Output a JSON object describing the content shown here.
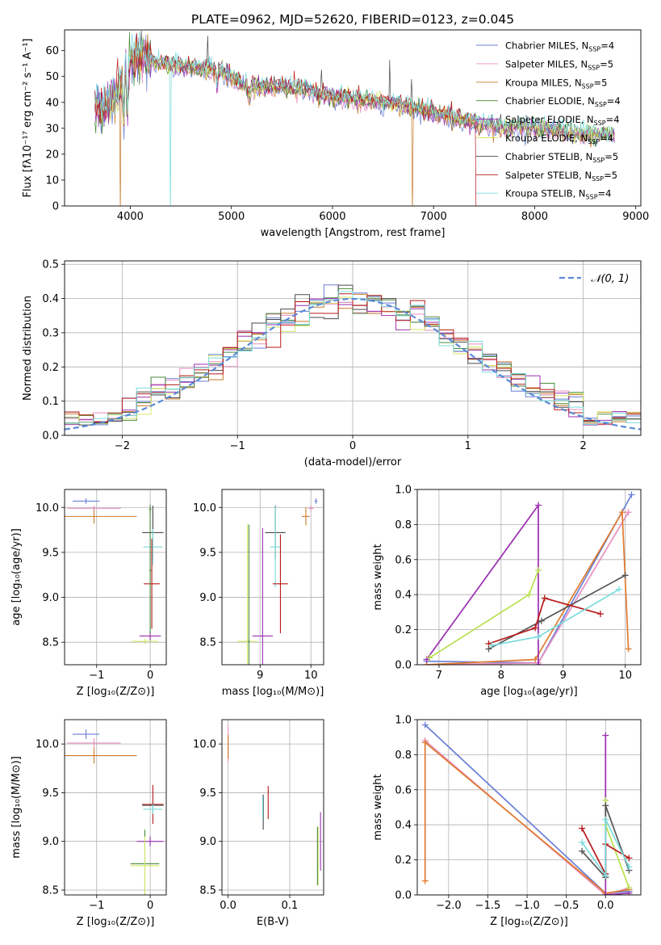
{
  "figure_title": "PLATE=0962, MJD=52620, FIBERID=0123, z=0.045",
  "colors": [
    "#6a7fd6",
    "#e88fc0",
    "#c87a2c",
    "#4a8a3a",
    "#9b30b0",
    "#d4e86a",
    "#4a4a4a",
    "#b81a1a",
    "#7adcdc"
  ],
  "chart_data": [
    {
      "id": "spectrum",
      "type": "line",
      "xlabel": "wavelength [Angstrom, rest frame]",
      "ylabel": "Flux [fλ10⁻¹⁷ erg cm⁻² s⁻¹ A⁻¹]",
      "xlim": [
        3350,
        9050
      ],
      "ylim": [
        0,
        68
      ],
      "xticks": [
        4000,
        5000,
        6000,
        7000,
        8000,
        9000
      ],
      "yticks": [
        0,
        10,
        20,
        30,
        40,
        50,
        60
      ],
      "grid": false,
      "legend_position": "top-right",
      "series": [
        {
          "name": "Chabrier MILES, N_SSP=4"
        },
        {
          "name": "Salpeter MILES, N_SSP=5"
        },
        {
          "name": "Kroupa MILES, N_SSP=5"
        },
        {
          "name": "Chabrier ELODIE, N_SSP=4"
        },
        {
          "name": "Salpeter ELODIE, N_SSP=4"
        },
        {
          "name": "Kroupa ELODIE, N_SSP=4"
        },
        {
          "name": "Chabrier STELIB, N_SSP=5"
        },
        {
          "name": "Salpeter STELIB, N_SSP=5"
        },
        {
          "name": "Kroupa STELIB, N_SSP=4"
        }
      ],
      "continuum": {
        "x": [
          3650,
          3800,
          3900,
          4000,
          4100,
          4300,
          4500,
          4700,
          4900,
          5100,
          5300,
          5500,
          5700,
          5900,
          6100,
          6300,
          6500,
          6700,
          6900,
          7100,
          7300,
          7500,
          7700,
          7900,
          8100,
          8300,
          8500,
          8700,
          8800
        ],
        "y": [
          38,
          40,
          45,
          56,
          58,
          55,
          54,
          53,
          52,
          47,
          46,
          46,
          45,
          43,
          42,
          41,
          40,
          39,
          37,
          35,
          33,
          32,
          30,
          31,
          30,
          29,
          28,
          28,
          28
        ]
      }
    },
    {
      "id": "residuals",
      "type": "histogram",
      "xlabel": "(data-model)/error",
      "ylabel": "Normed distribution",
      "xlim": [
        -2.5,
        2.5
      ],
      "ylim": [
        0,
        0.51
      ],
      "xticks": [
        -2,
        -1,
        0,
        1,
        2
      ],
      "yticks": [
        0.0,
        0.1,
        0.2,
        0.3,
        0.4,
        0.5
      ],
      "grid": true,
      "legend": "𝒩(0, 1)",
      "bins": 40,
      "reference_curve": "normal(0,1)"
    },
    {
      "id": "age_vs_Z",
      "type": "errorbar",
      "xlabel": "Z [log₁₀(Z/Z⊙)]",
      "ylabel": "age  [log₁₀(age/yr)]",
      "xlim": [
        -1.6,
        0.3
      ],
      "ylim": [
        8.25,
        10.2
      ],
      "xticks": [
        -1,
        0
      ],
      "yticks": [
        8.5,
        9.0,
        9.5,
        10.0
      ],
      "grid": true,
      "points": [
        {
          "x": -1.2,
          "y": 10.07,
          "xerr": 0.25,
          "yerr": 0.03,
          "c": 0
        },
        {
          "x": -1.05,
          "y": 9.99,
          "xerr": 0.5,
          "yerr": 0.03,
          "c": 1
        },
        {
          "x": -1.05,
          "y": 9.9,
          "xerr": 0.8,
          "yerr": 0.08,
          "c": 2
        },
        {
          "x": 0.0,
          "y": 9.98,
          "xerr": 0.02,
          "yerr": 0.05,
          "c": 3
        },
        {
          "x": 0.05,
          "y": 9.72,
          "xerr": 0.2,
          "yerr": 0.3,
          "c": 6
        },
        {
          "x": 0.05,
          "y": 9.56,
          "xerr": 0.18,
          "yerr": 0.2,
          "c": 8
        },
        {
          "x": 0.03,
          "y": 9.15,
          "xerr": 0.15,
          "yerr": 0.5,
          "c": 7
        },
        {
          "x": 0.0,
          "y": 8.57,
          "xerr": 0.2,
          "yerr": 0.05,
          "c": 4
        },
        {
          "x": -0.1,
          "y": 8.51,
          "xerr": 0.25,
          "yerr": 0.03,
          "c": 5
        },
        {
          "x": 0.0,
          "y": 9.3,
          "xerr": 0.02,
          "yerr": 0.7,
          "c": 3
        }
      ]
    },
    {
      "id": "age_vs_mass",
      "type": "errorbar",
      "xlabel": "mass [log₁₀(M/M⊙)]",
      "ylabel": "",
      "xlim": [
        8.25,
        10.25
      ],
      "ylim": [
        8.25,
        10.2
      ],
      "xticks": [
        9,
        10
      ],
      "yticks": [
        8.5,
        9.0,
        9.5,
        10.0
      ],
      "grid": true,
      "points": [
        {
          "x": 10.1,
          "y": 10.07,
          "xerr": 0.03,
          "yerr": 0.03,
          "c": 0
        },
        {
          "x": 10.0,
          "y": 9.99,
          "xerr": 0.05,
          "yerr": 0.03,
          "c": 1
        },
        {
          "x": 9.9,
          "y": 9.9,
          "xerr": 0.08,
          "yerr": 0.1,
          "c": 2
        },
        {
          "x": 9.3,
          "y": 9.72,
          "xerr": 0.2,
          "yerr": 0.3,
          "c": 6
        },
        {
          "x": 9.3,
          "y": 9.56,
          "xerr": 0.1,
          "yerr": 0.45,
          "c": 8
        },
        {
          "x": 9.4,
          "y": 9.15,
          "xerr": 0.15,
          "yerr": 0.55,
          "c": 7
        },
        {
          "x": 9.05,
          "y": 8.57,
          "xerr": 0.2,
          "yerr": 1.2,
          "c": 4
        },
        {
          "x": 8.75,
          "y": 8.51,
          "xerr": 0.2,
          "yerr": 1.3,
          "c": 5
        },
        {
          "x": 8.78,
          "y": 8.51,
          "xerr": 0.02,
          "yerr": 1.3,
          "c": 3
        }
      ]
    },
    {
      "id": "weight_vs_age",
      "type": "line",
      "xlabel": "age  [log₁₀(age/yr)]",
      "ylabel": "mass weight",
      "xlim": [
        6.65,
        10.25
      ],
      "ylim": [
        0,
        1.0
      ],
      "xticks": [
        7,
        8,
        9,
        10
      ],
      "yticks": [
        0.0,
        0.2,
        0.4,
        0.6,
        0.8,
        1.0
      ],
      "grid": true,
      "series": [
        {
          "c": 0,
          "x": [
            6.8,
            8.6,
            10.1
          ],
          "y": [
            0.02,
            0.01,
            0.97
          ]
        },
        {
          "c": 1,
          "x": [
            6.8,
            8.6,
            10.05
          ],
          "y": [
            0.0,
            0.01,
            0.87
          ]
        },
        {
          "c": 2,
          "x": [
            6.8,
            8.55,
            9.95,
            10.05
          ],
          "y": [
            0.0,
            0.03,
            0.87,
            0.09
          ]
        },
        {
          "c": 4,
          "x": [
            6.8,
            8.6,
            8.6
          ],
          "y": [
            0.03,
            0.91,
            0.0
          ]
        },
        {
          "c": 5,
          "x": [
            6.85,
            8.45,
            8.6
          ],
          "y": [
            0.04,
            0.4,
            0.54
          ]
        },
        {
          "c": 6,
          "x": [
            7.8,
            8.65,
            10.0
          ],
          "y": [
            0.09,
            0.25,
            0.51
          ]
        },
        {
          "c": 7,
          "x": [
            7.8,
            8.55,
            8.7,
            9.6
          ],
          "y": [
            0.12,
            0.21,
            0.38,
            0.29
          ]
        },
        {
          "c": 8,
          "x": [
            7.85,
            8.6,
            9.9
          ],
          "y": [
            0.11,
            0.16,
            0.43
          ]
        }
      ]
    },
    {
      "id": "mass_vs_Z",
      "type": "errorbar",
      "xlabel": "Z [log₁₀(Z/Z⊙)]",
      "ylabel": "mass [log₁₀(M/M⊙)]",
      "xlim": [
        -1.6,
        0.3
      ],
      "ylim": [
        8.45,
        10.25
      ],
      "xticks": [
        -1,
        0
      ],
      "yticks": [
        8.5,
        9.0,
        9.5,
        10.0
      ],
      "grid": true,
      "points": [
        {
          "x": -1.2,
          "y": 10.1,
          "xerr": 0.25,
          "yerr": 0.05,
          "c": 0
        },
        {
          "x": -1.05,
          "y": 10.01,
          "xerr": 0.5,
          "yerr": 0.05,
          "c": 1
        },
        {
          "x": -1.05,
          "y": 9.88,
          "xerr": 0.8,
          "yerr": 0.08,
          "c": 2
        },
        {
          "x": 0.05,
          "y": 9.38,
          "xerr": 0.2,
          "yerr": 0.2,
          "c": 7
        },
        {
          "x": 0.05,
          "y": 9.37,
          "xerr": 0.2,
          "yerr": 0.02,
          "c": 6
        },
        {
          "x": 0.05,
          "y": 9.33,
          "xerr": 0.18,
          "yerr": 0.05,
          "c": 8
        },
        {
          "x": 0.0,
          "y": 9.0,
          "xerr": 0.25,
          "yerr": 0.05,
          "c": 4
        },
        {
          "x": -0.1,
          "y": 8.77,
          "xerr": 0.27,
          "yerr": 0.35,
          "c": 3
        },
        {
          "x": -0.1,
          "y": 8.75,
          "xerr": 0.27,
          "yerr": 0.3,
          "c": 5
        }
      ]
    },
    {
      "id": "mass_vs_EBV",
      "type": "errorbar",
      "xlabel": "E(B-V)",
      "ylabel": "",
      "xlim": [
        -0.01,
        0.155
      ],
      "ylim": [
        8.45,
        10.25
      ],
      "xticks": [
        0.0,
        0.1
      ],
      "yticks": [
        8.5,
        9.0,
        9.5,
        10.0
      ],
      "grid": true,
      "points": [
        {
          "x": 0.0,
          "y": 10.0,
          "xerr": 0.0,
          "yerr": 0.18,
          "c": 1
        },
        {
          "x": 0.0,
          "y": 9.97,
          "xerr": 0.0,
          "yerr": 0.12,
          "c": 2
        },
        {
          "x": 0.057,
          "y": 9.3,
          "xerr": 0.0,
          "yerr": 0.18,
          "c": 6
        },
        {
          "x": 0.056,
          "y": 9.35,
          "xerr": 0.0,
          "yerr": 0.12,
          "c": 8
        },
        {
          "x": 0.065,
          "y": 9.4,
          "xerr": 0.0,
          "yerr": 0.17,
          "c": 7
        },
        {
          "x": 0.15,
          "y": 9.0,
          "xerr": 0.0,
          "yerr": 0.3,
          "c": 4
        },
        {
          "x": 0.146,
          "y": 8.85,
          "xerr": 0.0,
          "yerr": 0.3,
          "c": 5
        },
        {
          "x": 0.145,
          "y": 8.85,
          "xerr": 0.0,
          "yerr": 0.3,
          "c": 3
        }
      ]
    },
    {
      "id": "weight_vs_Z",
      "type": "line",
      "xlabel": "Z [log₁₀(Z/Z⊙)]",
      "ylabel": "mass weight",
      "xlim": [
        -2.4,
        0.45
      ],
      "ylim": [
        0,
        1.0
      ],
      "xticks": [
        -2.0,
        -1.5,
        -1.0,
        -0.5,
        0.0
      ],
      "yticks": [
        0.0,
        0.2,
        0.4,
        0.6,
        0.8,
        1.0
      ],
      "grid": true,
      "series": [
        {
          "c": 0,
          "x": [
            -2.3,
            0.0,
            0.3
          ],
          "y": [
            0.97,
            0.01,
            0.02
          ]
        },
        {
          "c": 1,
          "x": [
            -2.3,
            0.0,
            0.3
          ],
          "y": [
            0.88,
            0.0,
            0.04
          ]
        },
        {
          "c": 2,
          "x": [
            -2.3,
            -2.3,
            0.0,
            0.3
          ],
          "y": [
            0.08,
            0.87,
            0.01,
            0.03
          ]
        },
        {
          "c": 4,
          "x": [
            0.0,
            0.0,
            0.3
          ],
          "y": [
            0.91,
            0.0,
            0.01
          ]
        },
        {
          "c": 5,
          "x": [
            0.0,
            0.0,
            0.3
          ],
          "y": [
            0.54,
            0.4,
            0.04
          ]
        },
        {
          "c": 6,
          "x": [
            -0.3,
            0.0,
            0.0,
            0.3
          ],
          "y": [
            0.25,
            0.1,
            0.51,
            0.14
          ]
        },
        {
          "c": 7,
          "x": [
            -0.3,
            0.0,
            0.0,
            0.3
          ],
          "y": [
            0.38,
            0.12,
            0.29,
            0.21
          ]
        },
        {
          "c": 8,
          "x": [
            -0.3,
            0.0,
            0.0,
            0.3
          ],
          "y": [
            0.3,
            0.11,
            0.43,
            0.16
          ]
        }
      ]
    }
  ]
}
